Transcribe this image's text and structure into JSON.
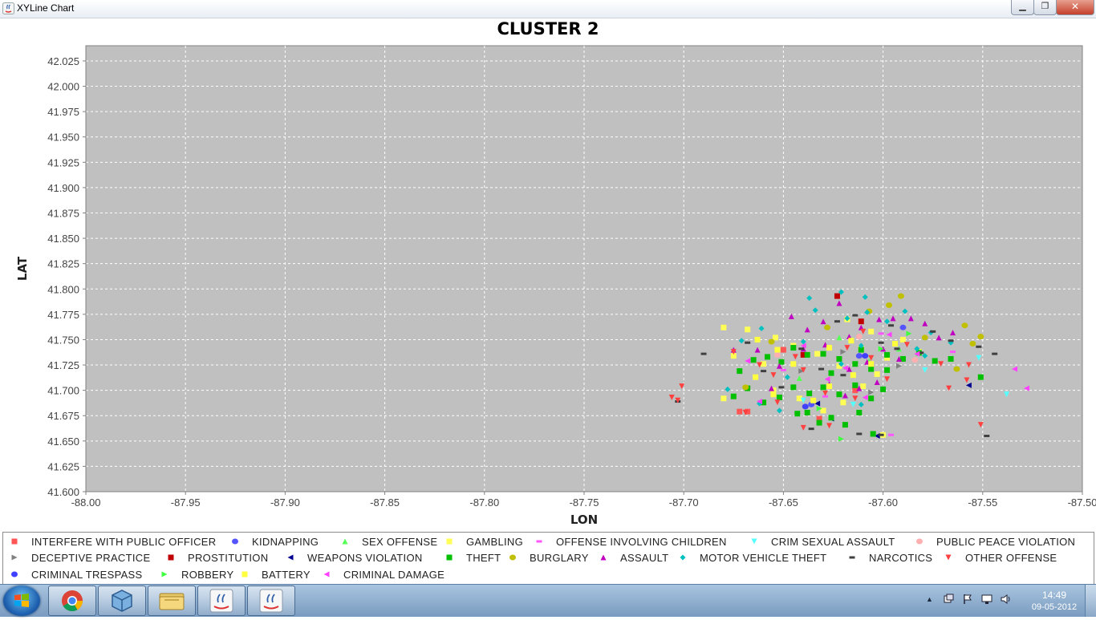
{
  "window": {
    "title": "XYLine Chart",
    "min_label": "▁",
    "max_label": "❐",
    "close_label": "✕"
  },
  "chart_data": {
    "type": "scatter",
    "title": "CLUSTER 2",
    "xlabel": "LON",
    "ylabel": "LAT",
    "xlim": [
      -88.0,
      -87.5
    ],
    "ylim": [
      41.6,
      42.04
    ],
    "x_ticks": [
      -88.0,
      -87.95,
      -87.9,
      -87.85,
      -87.8,
      -87.75,
      -87.7,
      -87.65,
      -87.6,
      -87.55,
      -87.5
    ],
    "y_ticks": [
      41.6,
      41.625,
      41.65,
      41.675,
      41.7,
      41.725,
      41.75,
      41.775,
      41.8,
      41.825,
      41.85,
      41.875,
      41.9,
      41.925,
      41.95,
      41.975,
      42.0,
      42.025
    ],
    "x_tick_labels": [
      "-88.00",
      "-87.95",
      "-87.90",
      "-87.85",
      "-87.80",
      "-87.75",
      "-87.70",
      "-87.65",
      "-87.60",
      "-87.55",
      "-87.50"
    ],
    "y_tick_labels": [
      "41.600",
      "41.625",
      "41.650",
      "41.675",
      "41.700",
      "41.725",
      "41.750",
      "41.775",
      "41.800",
      "41.825",
      "41.850",
      "41.875",
      "41.900",
      "41.925",
      "41.950",
      "41.975",
      "42.000",
      "42.025"
    ],
    "grid": true,
    "legend_position": "bottom",
    "plot_background": "#c0c0c0",
    "series": [
      {
        "name": "INTERFERE WITH PUBLIC OFFICER",
        "color": "#ff5555",
        "marker": "square",
        "points": [
          [
            -87.672,
            41.679
          ],
          [
            -87.668,
            41.679
          ],
          [
            -87.632,
            41.672
          ],
          [
            -87.614,
            41.7
          ],
          [
            -87.65,
            41.74
          ]
        ]
      },
      {
        "name": "KIDNAPPING",
        "color": "#5555ff",
        "marker": "circle",
        "points": [
          [
            -87.612,
            41.734
          ],
          [
            -87.636,
            41.686
          ],
          [
            -87.59,
            41.762
          ]
        ]
      },
      {
        "name": "SEX OFFENSE",
        "color": "#55ff55",
        "marker": "triangle-up",
        "points": [
          [
            -87.622,
            41.752
          ],
          [
            -87.607,
            41.729
          ],
          [
            -87.642,
            41.712
          ],
          [
            -87.592,
            41.741
          ]
        ]
      },
      {
        "name": "GAMBLING",
        "color": "#ffff55",
        "marker": "square",
        "points": [
          [
            -87.68,
            41.762
          ],
          [
            -87.675,
            41.734
          ],
          [
            -87.668,
            41.76
          ],
          [
            -87.654,
            41.752
          ],
          [
            -87.645,
            41.744
          ],
          [
            -87.633,
            41.736
          ],
          [
            -87.622,
            41.724
          ],
          [
            -87.611,
            41.742
          ],
          [
            -87.603,
            41.716
          ],
          [
            -87.598,
            41.732
          ],
          [
            -87.59,
            41.75
          ],
          [
            -87.582,
            41.738
          ],
          [
            -87.655,
            41.7
          ],
          [
            -87.642,
            41.692
          ],
          [
            -87.63,
            41.68
          ],
          [
            -87.62,
            41.688
          ],
          [
            -87.61,
            41.704
          ],
          [
            -87.6,
            41.656
          ],
          [
            -87.68,
            41.692
          ],
          [
            -87.66,
            41.726
          ],
          [
            -87.618,
            41.77
          ],
          [
            -87.606,
            41.758
          ]
        ]
      },
      {
        "name": "OFFENSE INVOLVING CHILDREN",
        "color": "#ff55ff",
        "marker": "dash",
        "points": [
          [
            -87.601,
            41.756
          ],
          [
            -87.629,
            41.694
          ],
          [
            -87.596,
            41.656
          ],
          [
            -87.565,
            41.738
          ],
          [
            -87.65,
            41.72
          ]
        ]
      },
      {
        "name": "CRIM SEXUAL ASSAULT",
        "color": "#55ffff",
        "marker": "triangle-down",
        "points": [
          [
            -87.538,
            41.696
          ],
          [
            -87.552,
            41.732
          ],
          [
            -87.579,
            41.72
          ],
          [
            -87.615,
            41.686
          ],
          [
            -87.64,
            41.69
          ]
        ]
      },
      {
        "name": "PUBLIC PEACE VIOLATION",
        "color": "#ffafaf",
        "marker": "circle",
        "points": [
          [
            -87.612,
            41.753
          ],
          [
            -87.653,
            41.735
          ],
          [
            -87.584,
            41.73
          ]
        ]
      },
      {
        "name": "DECEPTIVE PRACTICE",
        "color": "#808080",
        "marker": "triangle-right",
        "points": [
          [
            -87.641,
            41.719
          ],
          [
            -87.627,
            41.704
          ],
          [
            -87.606,
            41.698
          ],
          [
            -87.592,
            41.724
          ],
          [
            -87.62,
            41.738
          ]
        ]
      },
      {
        "name": "PROSTITUTION",
        "color": "#c00000",
        "marker": "square",
        "points": [
          [
            -87.623,
            41.793
          ],
          [
            -87.611,
            41.768
          ],
          [
            -87.64,
            41.735
          ]
        ]
      },
      {
        "name": "WEAPONS VIOLATION",
        "color": "#000090",
        "marker": "triangle-left",
        "points": [
          [
            -87.603,
            41.655
          ],
          [
            -87.633,
            41.687
          ],
          [
            -87.626,
            41.672
          ],
          [
            -87.557,
            41.705
          ]
        ]
      },
      {
        "name": "THEFT",
        "color": "#00c000",
        "marker": "square",
        "points": [
          [
            -87.672,
            41.719
          ],
          [
            -87.665,
            41.73
          ],
          [
            -87.658,
            41.733
          ],
          [
            -87.651,
            41.728
          ],
          [
            -87.645,
            41.742
          ],
          [
            -87.638,
            41.735
          ],
          [
            -87.63,
            41.736
          ],
          [
            -87.622,
            41.731
          ],
          [
            -87.614,
            41.726
          ],
          [
            -87.606,
            41.721
          ],
          [
            -87.598,
            41.735
          ],
          [
            -87.59,
            41.731
          ],
          [
            -87.582,
            41.737
          ],
          [
            -87.574,
            41.729
          ],
          [
            -87.566,
            41.731
          ],
          [
            -87.551,
            41.713
          ],
          [
            -87.675,
            41.694
          ],
          [
            -87.668,
            41.702
          ],
          [
            -87.66,
            41.688
          ],
          [
            -87.652,
            41.693
          ],
          [
            -87.645,
            41.703
          ],
          [
            -87.637,
            41.697
          ],
          [
            -87.63,
            41.703
          ],
          [
            -87.622,
            41.696
          ],
          [
            -87.614,
            41.705
          ],
          [
            -87.606,
            41.692
          ],
          [
            -87.598,
            41.72
          ],
          [
            -87.638,
            41.678
          ],
          [
            -87.632,
            41.668
          ],
          [
            -87.626,
            41.673
          ],
          [
            -87.619,
            41.666
          ],
          [
            -87.612,
            41.678
          ],
          [
            -87.605,
            41.657
          ],
          [
            -87.643,
            41.677
          ],
          [
            -87.626,
            41.717
          ],
          [
            -87.611,
            41.74
          ],
          [
            -87.6,
            41.701
          ]
        ]
      },
      {
        "name": "BURGLARY",
        "color": "#c0c000",
        "marker": "circle",
        "points": [
          [
            -87.591,
            41.793
          ],
          [
            -87.597,
            41.784
          ],
          [
            -87.559,
            41.764
          ],
          [
            -87.555,
            41.746
          ],
          [
            -87.551,
            41.753
          ],
          [
            -87.563,
            41.721
          ],
          [
            -87.579,
            41.752
          ],
          [
            -87.607,
            41.778
          ],
          [
            -87.628,
            41.762
          ],
          [
            -87.669,
            41.703
          ],
          [
            -87.656,
            41.748
          ]
        ]
      },
      {
        "name": "ASSAULT",
        "color": "#c000c0",
        "marker": "triangle-up",
        "points": [
          [
            -87.663,
            41.74
          ],
          [
            -87.652,
            41.724
          ],
          [
            -87.646,
            41.773
          ],
          [
            -87.638,
            41.76
          ],
          [
            -87.63,
            41.768
          ],
          [
            -87.622,
            41.786
          ],
          [
            -87.617,
            41.753
          ],
          [
            -87.611,
            41.762
          ],
          [
            -87.602,
            41.77
          ],
          [
            -87.595,
            41.771
          ],
          [
            -87.586,
            41.771
          ],
          [
            -87.579,
            41.766
          ],
          [
            -87.572,
            41.752
          ],
          [
            -87.565,
            41.757
          ],
          [
            -87.608,
            41.728
          ],
          [
            -87.6,
            41.741
          ],
          [
            -87.592,
            41.731
          ],
          [
            -87.627,
            41.706
          ],
          [
            -87.619,
            41.695
          ],
          [
            -87.612,
            41.702
          ],
          [
            -87.603,
            41.708
          ],
          [
            -87.675,
            41.74
          ],
          [
            -87.64,
            41.741
          ],
          [
            -87.629,
            41.745
          ],
          [
            -87.656,
            41.702
          ],
          [
            -87.617,
            41.721
          ]
        ]
      },
      {
        "name": "MOTOR VEHICLE THEFT",
        "color": "#00c0c0",
        "marker": "diamond",
        "points": [
          [
            -87.621,
            41.797
          ],
          [
            -87.609,
            41.792
          ],
          [
            -87.637,
            41.791
          ],
          [
            -87.634,
            41.779
          ],
          [
            -87.618,
            41.771
          ],
          [
            -87.608,
            41.777
          ],
          [
            -87.598,
            41.768
          ],
          [
            -87.589,
            41.778
          ],
          [
            -87.576,
            41.757
          ],
          [
            -87.566,
            41.747
          ],
          [
            -87.579,
            41.734
          ],
          [
            -87.611,
            41.744
          ],
          [
            -87.621,
            41.726
          ],
          [
            -87.648,
            41.713
          ],
          [
            -87.661,
            41.761
          ],
          [
            -87.671,
            41.749
          ],
          [
            -87.678,
            41.701
          ],
          [
            -87.662,
            41.687
          ],
          [
            -87.652,
            41.68
          ],
          [
            -87.611,
            41.686
          ],
          [
            -87.583,
            41.741
          ],
          [
            -87.64,
            41.748
          ]
        ]
      },
      {
        "name": "NARCOTICS",
        "color": "#404040",
        "marker": "dash",
        "points": [
          [
            -87.69,
            41.736
          ],
          [
            -87.703,
            41.689
          ],
          [
            -87.596,
            41.764
          ],
          [
            -87.601,
            41.747
          ],
          [
            -87.575,
            41.758
          ],
          [
            -87.566,
            41.749
          ],
          [
            -87.581,
            41.737
          ],
          [
            -87.544,
            41.736
          ],
          [
            -87.548,
            41.655
          ],
          [
            -87.601,
            41.656
          ],
          [
            -87.612,
            41.657
          ],
          [
            -87.631,
            41.721
          ],
          [
            -87.641,
            41.741
          ],
          [
            -87.651,
            41.703
          ],
          [
            -87.668,
            41.747
          ],
          [
            -87.66,
            41.719
          ],
          [
            -87.614,
            41.774
          ],
          [
            -87.623,
            41.768
          ],
          [
            -87.636,
            41.662
          ],
          [
            -87.62,
            41.715
          ],
          [
            -87.593,
            41.741
          ],
          [
            -87.552,
            41.743
          ]
        ]
      },
      {
        "name": "OTHER OFFENSE",
        "color": "#ff4040",
        "marker": "triangle-down",
        "points": [
          [
            -87.701,
            41.704
          ],
          [
            -87.706,
            41.693
          ],
          [
            -87.703,
            41.69
          ],
          [
            -87.551,
            41.666
          ],
          [
            -87.557,
            41.725
          ],
          [
            -87.567,
            41.702
          ],
          [
            -87.558,
            41.71
          ],
          [
            -87.571,
            41.726
          ],
          [
            -87.64,
            41.663
          ],
          [
            -87.627,
            41.665
          ],
          [
            -87.662,
            41.725
          ],
          [
            -87.675,
            41.738
          ],
          [
            -87.669,
            41.678
          ],
          [
            -87.653,
            41.688
          ],
          [
            -87.64,
            41.72
          ],
          [
            -87.618,
            41.742
          ],
          [
            -87.61,
            41.758
          ],
          [
            -87.598,
            41.711
          ],
          [
            -87.614,
            41.692
          ],
          [
            -87.629,
            41.697
          ],
          [
            -87.644,
            41.733
          ],
          [
            -87.655,
            41.715
          ],
          [
            -87.606,
            41.732
          ],
          [
            -87.588,
            41.745
          ]
        ]
      },
      {
        "name": "CRIMINAL TRESPASS",
        "color": "#4040ff",
        "marker": "circle",
        "points": [
          [
            -87.609,
            41.734
          ],
          [
            -87.639,
            41.684
          ]
        ]
      },
      {
        "name": "ROBBERY",
        "color": "#40ff40",
        "marker": "triangle-right",
        "points": [
          [
            -87.621,
            41.652
          ],
          [
            -87.632,
            41.682
          ],
          [
            -87.601,
            41.741
          ],
          [
            -87.587,
            41.756
          ]
        ]
      },
      {
        "name": "BATTERY",
        "color": "#ffff40",
        "marker": "square",
        "points": [
          [
            -87.663,
            41.75
          ],
          [
            -87.645,
            41.726
          ],
          [
            -87.627,
            41.704
          ],
          [
            -87.606,
            41.726
          ],
          [
            -87.594,
            41.746
          ],
          [
            -87.635,
            41.69
          ],
          [
            -87.615,
            41.715
          ],
          [
            -87.664,
            41.713
          ],
          [
            -87.653,
            41.74
          ],
          [
            -87.627,
            41.742
          ],
          [
            -87.616,
            41.749
          ],
          [
            -87.655,
            41.696
          ]
        ]
      },
      {
        "name": "CRIMINAL DAMAGE",
        "color": "#ff40ff",
        "marker": "triangle-left",
        "points": [
          [
            -87.528,
            41.702
          ],
          [
            -87.534,
            41.721
          ],
          [
            -87.583,
            41.736
          ],
          [
            -87.619,
            41.722
          ],
          [
            -87.668,
            41.729
          ],
          [
            -87.662,
            41.689
          ],
          [
            -87.628,
            41.711
          ],
          [
            -87.609,
            41.693
          ],
          [
            -87.64,
            41.744
          ],
          [
            -87.597,
            41.755
          ]
        ]
      }
    ]
  },
  "taskbar": {
    "clock_time": "14:49",
    "clock_date": "09-05-2012",
    "apps": [
      "chrome-icon",
      "virtualbox-icon",
      "explorer-icon",
      "java-icon",
      "java-icon"
    ]
  }
}
